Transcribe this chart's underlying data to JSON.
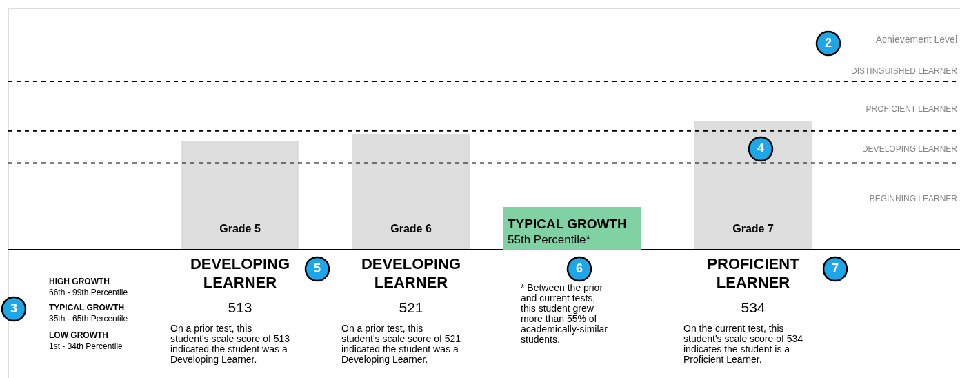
{
  "chart_data": {
    "type": "bar",
    "categories": [
      "Grade 5",
      "Grade 6",
      null,
      "Grade 7"
    ],
    "values": [
      513,
      521,
      null,
      534
    ],
    "color": "#dddddd",
    "ylim": [
      399,
      653
    ],
    "data_labels": true,
    "ref_lines": [
      {
        "axis": "y",
        "value": 576,
        "line_style": "dashed"
      },
      {
        "axis": "y",
        "value": 524,
        "line_style": "dashed"
      },
      {
        "axis": "y",
        "value": 490,
        "line_style": "dashed"
      }
    ],
    "annotations": [
      "Achievement Level",
      "DISTINGUISHED LEARNER",
      "PROFICIENT LEARNER",
      "DEVELOPING LEARNER",
      "BEGINNING LEARNER",
      "2",
      "3",
      "4",
      "5",
      "6",
      "7",
      "TYPICAL GROWTH",
      "55th Percentile*",
      "HIGH GROWTH",
      "66th - 99th Percentile",
      "TYPICAL GROWTH",
      "35th - 65th Percentile",
      "LOW GROWTH",
      "1st - 34th Percentile",
      "DEVELOPING LEARNER",
      "On a prior test, this student's scale score of 513 indicated the student was a Developing Learner.",
      "DEVELOPING LEARNER",
      "On a prior test, this student's scale score of 521 indicated the student was a Developing Learner.",
      "PROFICIENT LEARNER",
      "On the current test, this student's scale score of 534 indicates the student is a Proficient Learner.",
      "* Between the prior and current tests, this student grew more than 55% of academically-similar students."
    ]
  }
}
